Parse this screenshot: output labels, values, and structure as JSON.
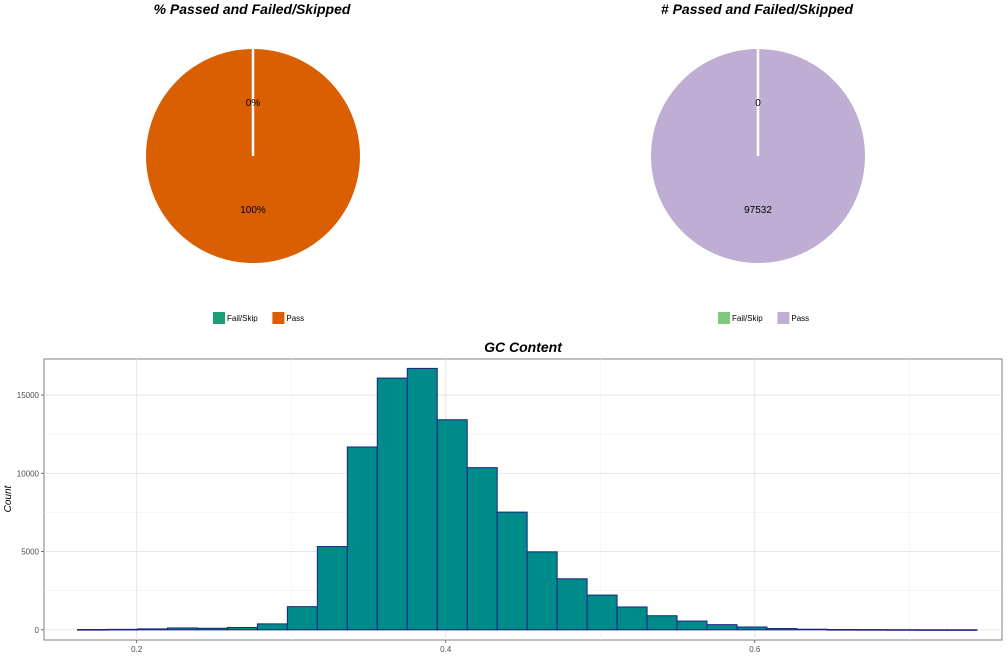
{
  "chart_data": [
    {
      "type": "pie",
      "title": "% Passed and Failed/Skipped",
      "categories": [
        "Fail/Skip",
        "Pass"
      ],
      "values": [
        0,
        100
      ],
      "labels": [
        "0%",
        "100%"
      ],
      "colors": [
        "#1b9e77",
        "#d95f02"
      ],
      "legend_position": "bottom"
    },
    {
      "type": "pie",
      "title": "# Passed and Failed/Skipped",
      "categories": [
        "Fail/Skip",
        "Pass"
      ],
      "values": [
        0,
        97532
      ],
      "labels": [
        "0",
        "97532"
      ],
      "colors": [
        "#7fc97f",
        "#beaed4"
      ],
      "legend_position": "bottom"
    },
    {
      "type": "bar",
      "subtype": "histogram",
      "title": "GC Content",
      "xlabel": "",
      "ylabel": "Count",
      "xlim": [
        0.14,
        0.76
      ],
      "ylim": [
        -650,
        17300
      ],
      "xticks": [
        0.2,
        0.4,
        0.6
      ],
      "xtick_labels": [
        "0.2",
        "0.4",
        "0.6"
      ],
      "yticks": [
        0,
        5000,
        10000,
        15000
      ],
      "ytick_labels": [
        "0",
        "5000",
        "10000",
        "15000"
      ],
      "grid": true,
      "bin_width": 0.0194,
      "bin_starts": [
        0.1617,
        0.1811,
        0.2005,
        0.2199,
        0.2393,
        0.2587,
        0.2781,
        0.2975,
        0.3169,
        0.3363,
        0.3557,
        0.3751,
        0.3945,
        0.4139,
        0.4333,
        0.4527,
        0.4721,
        0.4915,
        0.5109,
        0.5303,
        0.5497,
        0.5691,
        0.5885,
        0.6079,
        0.6273,
        0.6467,
        0.6661,
        0.6855,
        0.7049,
        0.7243
      ],
      "values": [
        20,
        30,
        60,
        120,
        100,
        150,
        380,
        1480,
        5320,
        11680,
        16080,
        16700,
        13420,
        10360,
        7520,
        4980,
        3260,
        2220,
        1460,
        900,
        560,
        330,
        180,
        80,
        40,
        20,
        15,
        10,
        5,
        5
      ],
      "fill_color": "#008b8b",
      "edge_color": "#1a237e"
    }
  ]
}
